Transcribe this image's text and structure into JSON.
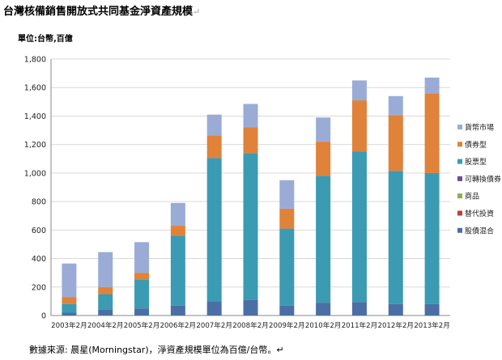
{
  "title": "台灣核備銷售開放式共同基金淨資產規模",
  "title_mark": "↵",
  "unit_label": "單位:台幣,百億",
  "source_note": "數據來源: 晨星(Morningstar)，淨資產規模單位為百億/台幣。↵",
  "chart_data": {
    "type": "bar",
    "stacked": true,
    "categories": [
      "2003年2月",
      "2004年2月",
      "2005年2月",
      "2006年2月",
      "2007年2月",
      "2008年2月",
      "2009年2月",
      "2010年2月",
      "2011年2月",
      "2012年2月",
      "2013年2月"
    ],
    "ylim": [
      0,
      1800
    ],
    "yticks": [
      "0",
      "200",
      "400",
      "600",
      "800",
      "1,000",
      "1,200",
      "1,400",
      "1,600",
      "1,800"
    ],
    "grid": true,
    "legend_position": "right",
    "series": [
      {
        "name": "股債混合",
        "color": "#4a6fa5",
        "values": [
          20,
          40,
          50,
          70,
          100,
          110,
          70,
          90,
          95,
          80,
          80
        ]
      },
      {
        "name": "替代投資",
        "color": "#b5413c",
        "values": [
          0,
          0,
          0,
          0,
          0,
          0,
          0,
          0,
          0,
          0,
          0
        ]
      },
      {
        "name": "商品",
        "color": "#8fae4b",
        "values": [
          0,
          0,
          0,
          0,
          0,
          0,
          0,
          0,
          0,
          0,
          0
        ]
      },
      {
        "name": "可轉換債券",
        "color": "#6b4f8f",
        "values": [
          0,
          0,
          0,
          0,
          0,
          0,
          0,
          0,
          0,
          0,
          0
        ]
      },
      {
        "name": "股票型",
        "color": "#3a9bb3",
        "values": [
          60,
          110,
          200,
          490,
          1005,
          1030,
          540,
          890,
          1055,
          935,
          920
        ]
      },
      {
        "name": "債券型",
        "color": "#e0823a",
        "values": [
          50,
          50,
          50,
          70,
          160,
          180,
          140,
          240,
          360,
          390,
          560
        ]
      },
      {
        "name": "貨幣市場",
        "color": "#9aacd6",
        "values": [
          235,
          245,
          215,
          160,
          145,
          165,
          200,
          170,
          140,
          135,
          110
        ]
      }
    ]
  }
}
